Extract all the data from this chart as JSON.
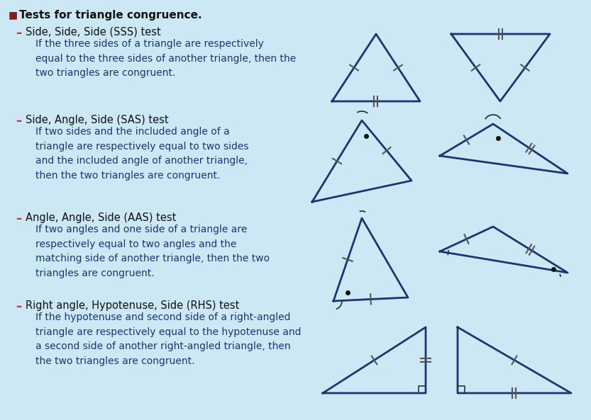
{
  "bg_color": "#cce8f4",
  "triangle_color": "#1a3575",
  "tick_color": "#555555",
  "title": "Tests for triangle congruence.",
  "dash_color": "#c0392b",
  "body_text_color": "#1a3575",
  "items": [
    {
      "header": "Side, Side, Side (SSS) test",
      "body": "If the three sides of a triangle are respectively\nequal to the three sides of another triangle, then the\ntwo triangles are congruent."
    },
    {
      "header": "Side, Angle, Side (SAS) test",
      "body": "If two sides and the included angle of a\ntriangle are respectively equal to two sides\nand the included angle of another triangle,\nthen the two triangles are congruent."
    },
    {
      "header": "Angle, Angle, Side (AAS) test",
      "body": "If two angles and one side of a triangle are\nrespectively equal to two angles and the\nmatching side of another triangle, then the two\ntriangles are congruent."
    },
    {
      "header": "Right angle, Hypotenuse, Side (RHS) test",
      "body": "If the hypotenuse and second side of a right-angled\ntriangle are respectively equal to the hypotenuse and\na second side of another right-angled triangle, then\nthe two triangles are congruent."
    }
  ]
}
